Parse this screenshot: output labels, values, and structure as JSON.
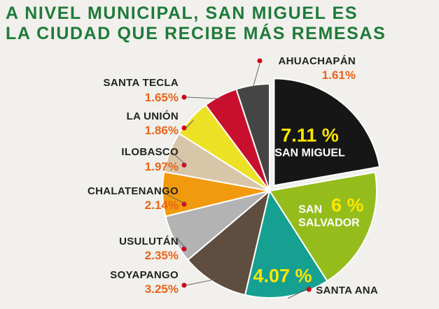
{
  "chart_data": {
    "type": "pie",
    "title_lines": [
      "A NIVEL MUNICIPAL, SAN MIGUEL ES",
      "LA CIUDAD QUE RECIBE MÁS REMESAS"
    ],
    "slices": [
      {
        "label": "SAN MIGUEL",
        "value": 7.11,
        "display": "7.11 %",
        "color": "#161616"
      },
      {
        "label": "SAN SALVADOR",
        "value": 6.0,
        "display": "6 %",
        "color": "#94bd1c"
      },
      {
        "label": "SANTA ANA",
        "value": 4.07,
        "display": "4.07 %",
        "color": "#16a091"
      },
      {
        "label": "SOYAPANGO",
        "value": 3.25,
        "display": "3.25%",
        "color": "#5f4d3f"
      },
      {
        "label": "USULUTÁN",
        "value": 2.35,
        "display": "2.35%",
        "color": "#b3b3b3"
      },
      {
        "label": "CHALATENANGO",
        "value": 2.14,
        "display": "2.14%",
        "color": "#f29a0e"
      },
      {
        "label": "ILOBASCO",
        "value": 1.97,
        "display": "1.97%",
        "color": "#d8c6a8"
      },
      {
        "label": "LA UNIÓN",
        "value": 1.86,
        "display": "1.86%",
        "color": "#ece125"
      },
      {
        "label": "SANTA TECLA",
        "value": 1.65,
        "display": "1.65%",
        "color": "#c8102e"
      },
      {
        "label": "AHUACHAPÁN",
        "value": 1.61,
        "display": "1.61%",
        "color": "#454545"
      }
    ]
  }
}
